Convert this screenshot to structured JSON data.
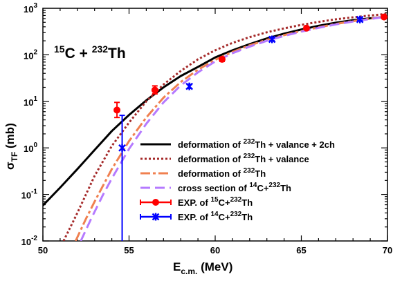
{
  "chart_data": {
    "type": "line",
    "xlabel": {
      "main": "E",
      "sub": "c.m.",
      "rest": " (MeV)"
    },
    "ylabel": {
      "main": "σ",
      "sub": "TF",
      "rest": " (mb)"
    },
    "xlim": [
      50,
      70
    ],
    "ylim": [
      0.01,
      1000
    ],
    "yscale": "log",
    "x_ticks": [
      50,
      55,
      60,
      65,
      70
    ],
    "y_ticks": [
      {
        "value": 0.01,
        "base": "10",
        "exp": "-2"
      },
      {
        "value": 0.1,
        "base": "10",
        "exp": "-1"
      },
      {
        "value": 1,
        "base": "10",
        "exp": "0"
      },
      {
        "value": 10,
        "base": "10",
        "exp": "1"
      },
      {
        "value": 100,
        "base": "10",
        "exp": "2"
      },
      {
        "value": 1000,
        "base": "10",
        "exp": "3"
      }
    ],
    "annotation": {
      "a": "15",
      "b": "C + ",
      "c": "232",
      "d": "Th"
    },
    "legend_position": "bottom-right",
    "series": [
      {
        "name": "deformation of 232Th + valance + 2ch",
        "legend": [
          [
            "deformation of ",
            false
          ],
          [
            "232",
            true
          ],
          [
            "Th + valance + 2ch",
            false
          ]
        ],
        "style": "solid",
        "color": "#000000",
        "width": 3,
        "x": [
          50,
          51,
          52,
          53,
          54,
          55,
          56,
          57,
          58,
          59,
          60,
          61,
          62,
          63,
          64,
          65,
          66,
          67,
          68,
          69,
          70
        ],
        "y": [
          0.058,
          0.14,
          0.35,
          0.9,
          2.3,
          5.1,
          10.5,
          20,
          35,
          55,
          88,
          125,
          170,
          225,
          285,
          350,
          420,
          490,
          555,
          610,
          660
        ]
      },
      {
        "name": "deformation of 232Th + valance",
        "legend": [
          [
            "deformation of ",
            false
          ],
          [
            "232",
            true
          ],
          [
            "Th + valance",
            false
          ]
        ],
        "style": "dotted",
        "color": "#a52a2a",
        "width": 3,
        "x": [
          51.2,
          52,
          53,
          54,
          55,
          56,
          57,
          58,
          59,
          60,
          61,
          62,
          63,
          64,
          65,
          66,
          67,
          68,
          69,
          70
        ],
        "y": [
          0.01,
          0.04,
          0.25,
          1.1,
          3.5,
          10,
          23,
          45,
          80,
          125,
          180,
          240,
          305,
          370,
          440,
          510,
          580,
          640,
          700,
          760
        ]
      },
      {
        "name": "deformation of 232Th",
        "legend": [
          [
            "deformation of ",
            false
          ],
          [
            "232",
            true
          ],
          [
            "Th",
            false
          ]
        ],
        "style": "dashdot",
        "color": "#f08050",
        "width": 3,
        "x": [
          51.9,
          52.5,
          53,
          54,
          55,
          56,
          57,
          58,
          59,
          60,
          61,
          62,
          63,
          64,
          65,
          66,
          67,
          68,
          69,
          70
        ],
        "y": [
          0.01,
          0.03,
          0.07,
          0.35,
          1.4,
          4.5,
          12,
          26,
          48,
          78,
          115,
          160,
          210,
          265,
          325,
          390,
          460,
          530,
          600,
          670
        ]
      },
      {
        "name": "cross section of 14C+232Th",
        "legend": [
          [
            "cross section of ",
            false
          ],
          [
            "14",
            true
          ],
          [
            "C+",
            false
          ],
          [
            "232",
            true
          ],
          [
            "Th",
            false
          ]
        ],
        "style": "dashed",
        "color": "#b57aff",
        "width": 3,
        "x": [
          52.2,
          52.8,
          53.5,
          54,
          55,
          56,
          57,
          58,
          59,
          60,
          61,
          62,
          63,
          64,
          65,
          66,
          67,
          68,
          69,
          70
        ],
        "y": [
          0.01,
          0.03,
          0.1,
          0.22,
          0.95,
          3.3,
          9.5,
          22,
          42,
          72,
          108,
          150,
          200,
          255,
          315,
          380,
          450,
          520,
          590,
          660
        ]
      },
      {
        "name": "EXP. of 15C+232Th",
        "legend": [
          [
            "EXP. of ",
            false
          ],
          [
            "15",
            true
          ],
          [
            "C+",
            false
          ],
          [
            "232",
            true
          ],
          [
            "Th",
            false
          ]
        ],
        "style": "marker-circle",
        "color": "#ff0000",
        "points": [
          {
            "x": 54.3,
            "y": 6.5,
            "lo": 4.5,
            "hi": 9.5
          },
          {
            "x": 56.5,
            "y": 17.5,
            "lo": 14.5,
            "hi": 21.5
          },
          {
            "x": 60.4,
            "y": 80,
            "lo": 72,
            "hi": 88
          },
          {
            "x": 65.3,
            "y": 375,
            "lo": 350,
            "hi": 400
          },
          {
            "x": 69.8,
            "y": 650,
            "lo": 620,
            "hi": 680
          }
        ]
      },
      {
        "name": "EXP. of 14C+232Th",
        "legend": [
          [
            "EXP. of ",
            false
          ],
          [
            "14",
            true
          ],
          [
            "C+",
            false
          ],
          [
            "232",
            true
          ],
          [
            "Th",
            false
          ]
        ],
        "style": "marker-x",
        "color": "#0000ff",
        "points": [
          {
            "x": 54.6,
            "y": 1.0,
            "lo": 0.005,
            "hi": 5.0
          },
          {
            "x": 58.5,
            "y": 21,
            "lo": 19,
            "hi": 23
          },
          {
            "x": 63.3,
            "y": 215,
            "lo": 200,
            "hi": 230
          },
          {
            "x": 68.4,
            "y": 575,
            "lo": 550,
            "hi": 600
          }
        ]
      }
    ]
  }
}
